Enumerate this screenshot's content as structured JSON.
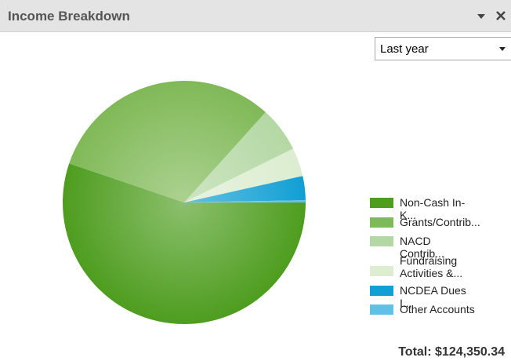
{
  "chart_data": {
    "type": "pie",
    "title": "Income Breakdown",
    "filter": "Last year",
    "total": "Total: $124,350.34",
    "categories": [
      "Non-Cash In-K...",
      "Grants/Contrib...",
      "NACD Contrib...",
      "Fundraising Activities &...",
      "NCDEA Dues I...",
      "Other Accounts"
    ],
    "values": [
      55.2,
      31.5,
      6,
      3.8,
      3.2,
      0.3
    ],
    "colors": [
      "#4e9d1f",
      "#80b957",
      "#b4d8a4",
      "#dcedd0",
      "#119fd4",
      "#61c0e6"
    ]
  }
}
